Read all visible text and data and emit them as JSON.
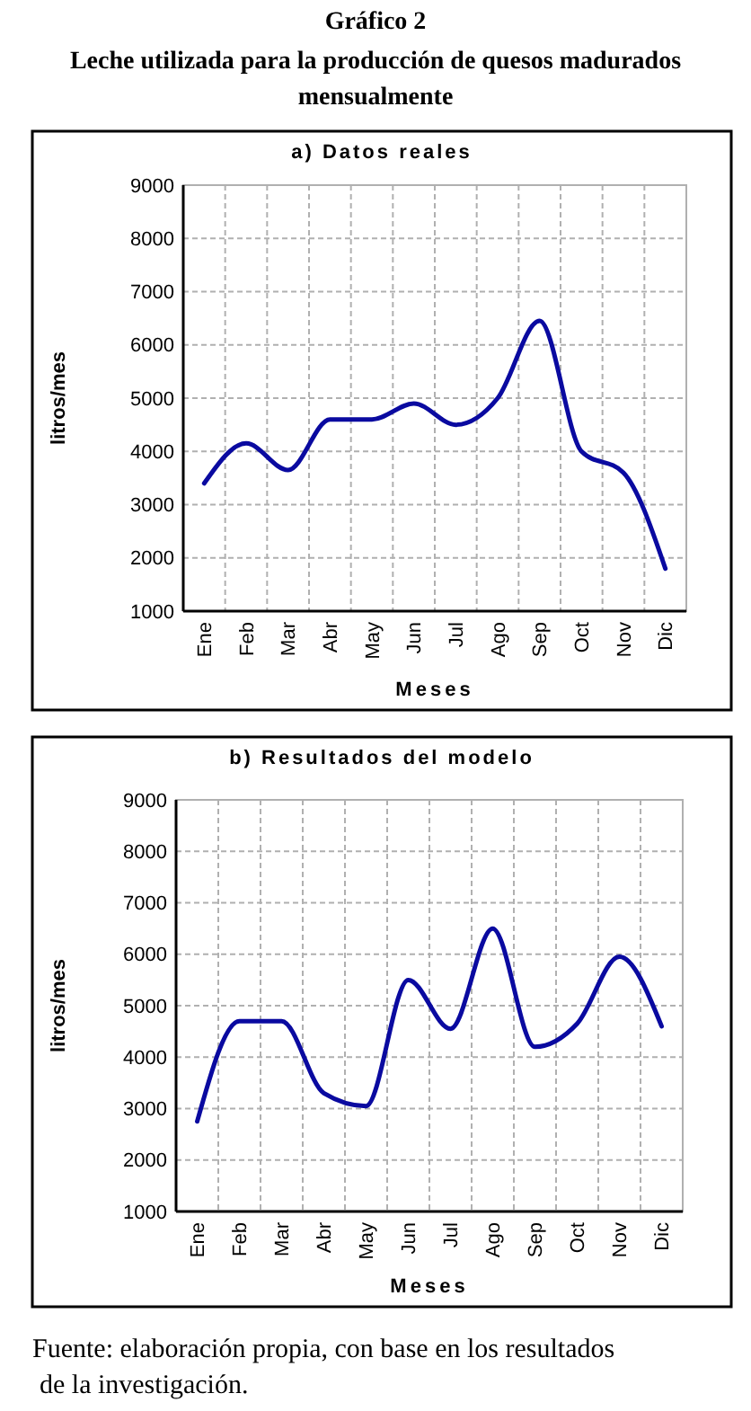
{
  "chart_data": [
    {
      "type": "other",
      "title": "Gráfico 2",
      "subtitle": "Leche utilizada para la producción de quesos madurados mensualmente"
    },
    {
      "type": "line",
      "title": "a) Datos reales",
      "xlabel": "Meses",
      "ylabel": "litros/mes",
      "ylim": [
        1000,
        9000
      ],
      "yticks": [
        1000,
        2000,
        3000,
        4000,
        5000,
        6000,
        7000,
        8000,
        9000
      ],
      "categories": [
        "Ene",
        "Feb",
        "Mar",
        "Abr",
        "May",
        "Jun",
        "Jul",
        "Ago",
        "Sep",
        "Oct",
        "Nov",
        "Dic"
      ],
      "grid": true,
      "marker": "none",
      "line_style": "solid",
      "series": [
        {
          "color": "#0a0aa0",
          "values": [
            3400,
            4150,
            3650,
            4600,
            4600,
            4900,
            4500,
            5000,
            6450,
            4000,
            3600,
            1800
          ]
        }
      ]
    },
    {
      "type": "line",
      "title": "b) Resultados del modelo",
      "xlabel": "Meses",
      "ylabel": "litros/mes",
      "ylim": [
        1000,
        9000
      ],
      "yticks": [
        1000,
        2000,
        3000,
        4000,
        5000,
        6000,
        7000,
        8000,
        9000
      ],
      "categories": [
        "Ene",
        "Feb",
        "Mar",
        "Abr",
        "May",
        "Jun",
        "Jul",
        "Ago",
        "Sep",
        "Oct",
        "Nov",
        "Dic"
      ],
      "grid": true,
      "marker": "none",
      "line_style": "solid",
      "annotations": [
        "Fuente: elaboración propia, con base en los resultados de la investigación."
      ],
      "series": [
        {
          "color": "#0a0aa0",
          "values": [
            2750,
            4700,
            4700,
            3300,
            3050,
            5500,
            4550,
            6500,
            4200,
            4650,
            5950,
            4600
          ]
        }
      ]
    }
  ]
}
